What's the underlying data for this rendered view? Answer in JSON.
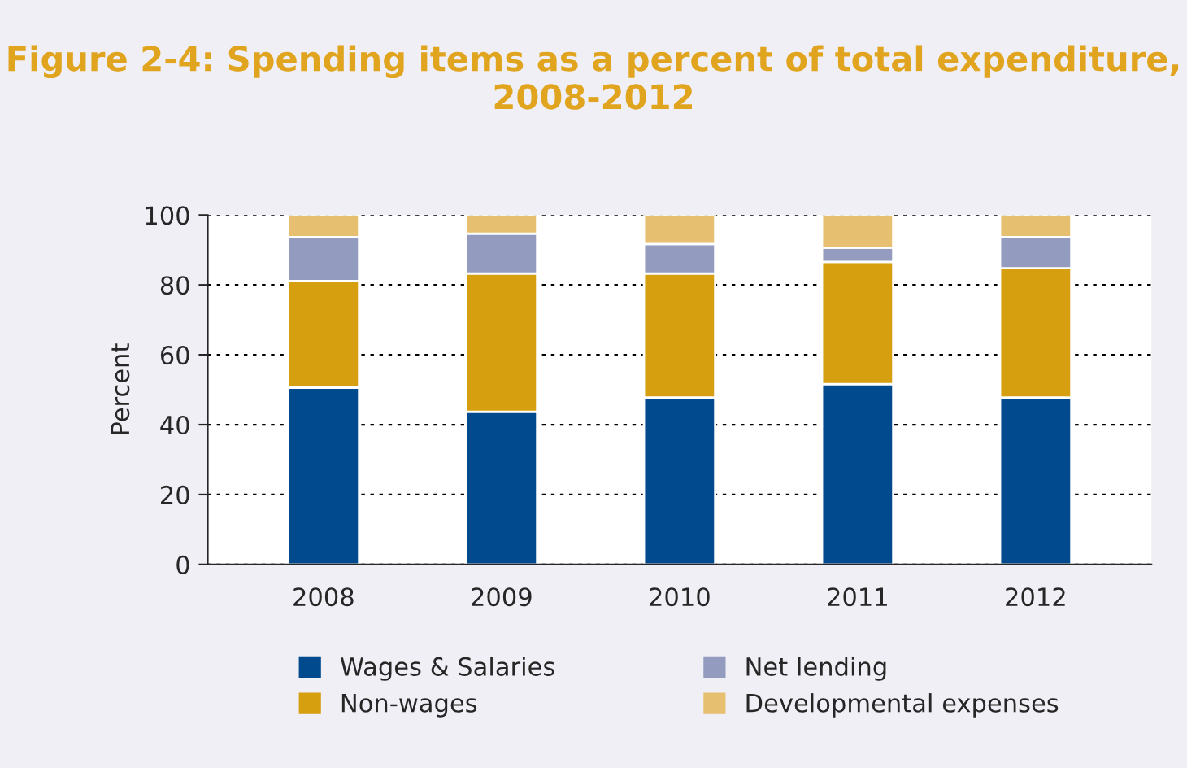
{
  "chart_data": {
    "type": "bar",
    "title": "Figure 2-4: Spending items as a percent of total expenditure, 2008-2012",
    "ylabel": "Percent",
    "categories": [
      "2008",
      "2009",
      "2010",
      "2011",
      "2012"
    ],
    "stacked": true,
    "series": [
      {
        "name": "Wages & Salaries",
        "color": "#004a8d",
        "values": [
          50.6,
          43.7,
          47.8,
          51.6,
          47.8
        ]
      },
      {
        "name": "Non-wages",
        "color": "#d59f0f",
        "values": [
          30.5,
          39.6,
          35.5,
          35.0,
          37.0
        ]
      },
      {
        "name": "Net lending",
        "color": "#939cbf",
        "values": [
          12.6,
          11.4,
          8.4,
          4.1,
          8.9
        ]
      },
      {
        "name": "Developmental expenses",
        "color": "#e6c070",
        "values": [
          6.3,
          5.3,
          8.3,
          9.3,
          6.3
        ]
      }
    ],
    "ylim": [
      0,
      100
    ],
    "yticks": [
      0,
      20,
      40,
      60,
      80,
      100
    ],
    "grid": "y",
    "legend": "bottom"
  }
}
